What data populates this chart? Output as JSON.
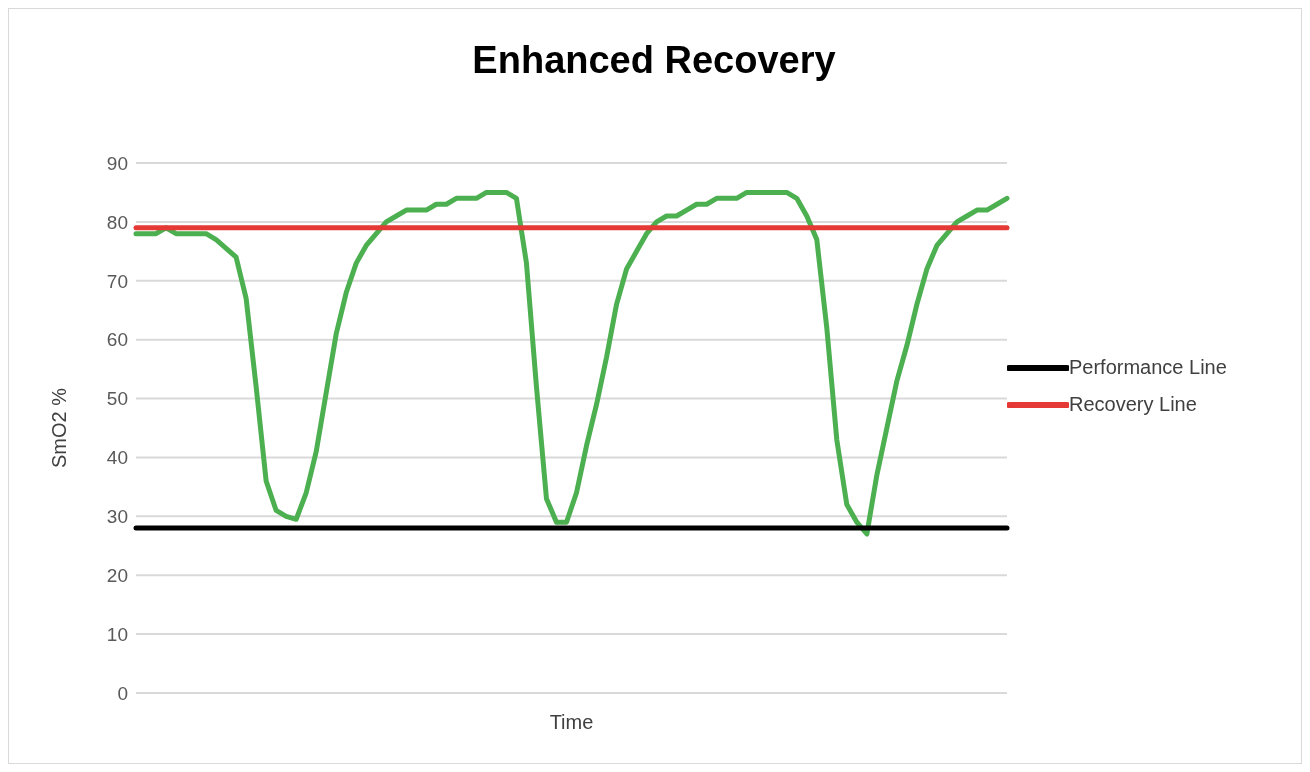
{
  "chart_data": {
    "type": "line",
    "title": "Enhanced Recovery",
    "xlabel": "Time",
    "ylabel": "SmO2 %",
    "categories": [
      null,
      null,
      null,
      null,
      null,
      null,
      null,
      null,
      null,
      null,
      null,
      null,
      null,
      null,
      null,
      null,
      null,
      null,
      null,
      null,
      null,
      null,
      null,
      null,
      null,
      null,
      null,
      null,
      null,
      null,
      null,
      null,
      null,
      null,
      null,
      null,
      null,
      null,
      null,
      null,
      null,
      null,
      null,
      null,
      null,
      null,
      null,
      null,
      null,
      null,
      null,
      null,
      null,
      null,
      null,
      null,
      null,
      null,
      null,
      null,
      null,
      null,
      null,
      null,
      null,
      null,
      null,
      null,
      null,
      null,
      null,
      null,
      null,
      null,
      null,
      null,
      null,
      null,
      null,
      null,
      null,
      null,
      null,
      null,
      null,
      null,
      null,
      null
    ],
    "series": [
      {
        "color": "#4caf50",
        "values": [
          78,
          78,
          78,
          79,
          78,
          78,
          78,
          78,
          77,
          75.5,
          74,
          67,
          52,
          36,
          31,
          30,
          29.5,
          34,
          41,
          51,
          61,
          68,
          73,
          76,
          78,
          80,
          81,
          82,
          82,
          82,
          83,
          83,
          84,
          84,
          84,
          85,
          85,
          85,
          84,
          73,
          52,
          33,
          29,
          29,
          34,
          42,
          49,
          57,
          66,
          72,
          75,
          78,
          80,
          81,
          81,
          82,
          83,
          83,
          84,
          84,
          84,
          85,
          85,
          85,
          85,
          85,
          84,
          81,
          77,
          62,
          43,
          32,
          29,
          27,
          37,
          45,
          53,
          59,
          66,
          72,
          76,
          78,
          80,
          81,
          82,
          82,
          83,
          84
        ]
      },
      {
        "name": "Performance Line",
        "color": "#000000",
        "values": [
          28,
          28,
          28,
          28,
          28,
          28,
          28,
          28,
          28,
          28,
          28,
          28,
          28,
          28,
          28,
          28,
          28,
          28,
          28,
          28,
          28,
          28,
          28,
          28,
          28,
          28,
          28,
          28,
          28,
          28,
          28,
          28,
          28,
          28,
          28,
          28,
          28,
          28,
          28,
          28,
          28,
          28,
          28,
          28,
          28,
          28,
          28,
          28,
          28,
          28,
          28,
          28,
          28,
          28,
          28,
          28,
          28,
          28,
          28,
          28,
          28,
          28,
          28,
          28,
          28,
          28,
          28,
          28,
          28,
          28,
          28,
          28,
          28,
          28,
          28,
          28,
          28,
          28,
          28,
          28,
          28,
          28,
          28,
          28,
          28,
          28,
          28,
          28
        ]
      },
      {
        "name": "Recovery Line",
        "color": "#e53935",
        "values": [
          79,
          79,
          79,
          79,
          79,
          79,
          79,
          79,
          79,
          79,
          79,
          79,
          79,
          79,
          79,
          79,
          79,
          79,
          79,
          79,
          79,
          79,
          79,
          79,
          79,
          79,
          79,
          79,
          79,
          79,
          79,
          79,
          79,
          79,
          79,
          79,
          79,
          79,
          79,
          79,
          79,
          79,
          79,
          79,
          79,
          79,
          79,
          79,
          79,
          79,
          79,
          79,
          79,
          79,
          79,
          79,
          79,
          79,
          79,
          79,
          79,
          79,
          79,
          79,
          79,
          79,
          79,
          79,
          79,
          79,
          79,
          79,
          79,
          79,
          79,
          79,
          79,
          79,
          79,
          79,
          79,
          79,
          79,
          79,
          79,
          79,
          79,
          79
        ]
      }
    ],
    "ylim": [
      0,
      90
    ],
    "yticks": [
      0,
      10,
      20,
      30,
      40,
      50,
      60,
      70,
      80,
      90
    ],
    "grid": "y",
    "legend": "right",
    "marker": "none",
    "line_style": "solid"
  }
}
